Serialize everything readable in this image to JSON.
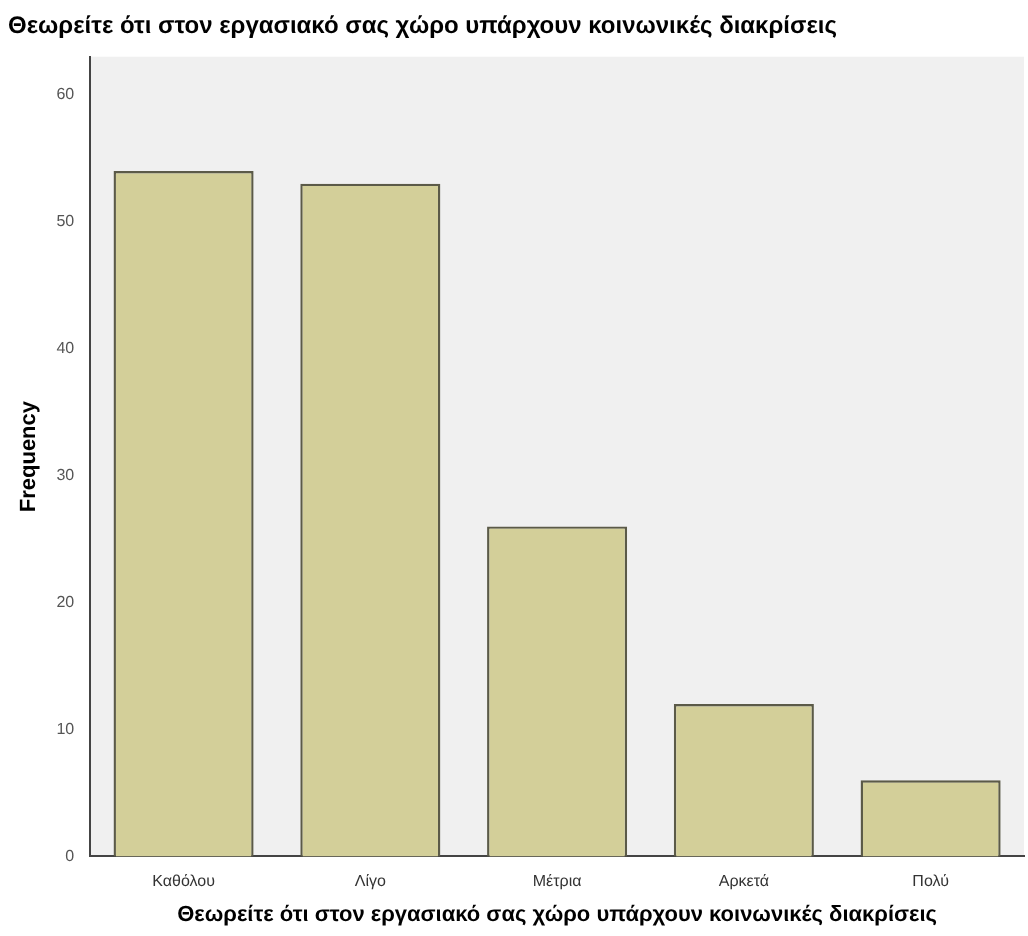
{
  "chart_data": {
    "type": "bar",
    "title": "Θεωρείτε ότι στον εργασιακό σας χώρο υπάρχουν κοινωνικές διακρίσεις",
    "xlabel": "Θεωρείτε ότι στον εργασιακό σας χώρο υπάρχουν κοινωνικές διακρίσεις",
    "ylabel": "Frequency",
    "categories": [
      "Καθόλου",
      "Λίγο",
      "Μέτρια",
      "Αρκετά",
      "Πολύ"
    ],
    "values": [
      54,
      53,
      26,
      12,
      6
    ],
    "color": "#d3cf99",
    "ylim": [
      0,
      63
    ],
    "yticks": [
      0,
      10,
      20,
      30,
      40,
      50,
      60
    ],
    "grid": false,
    "legend": false
  }
}
